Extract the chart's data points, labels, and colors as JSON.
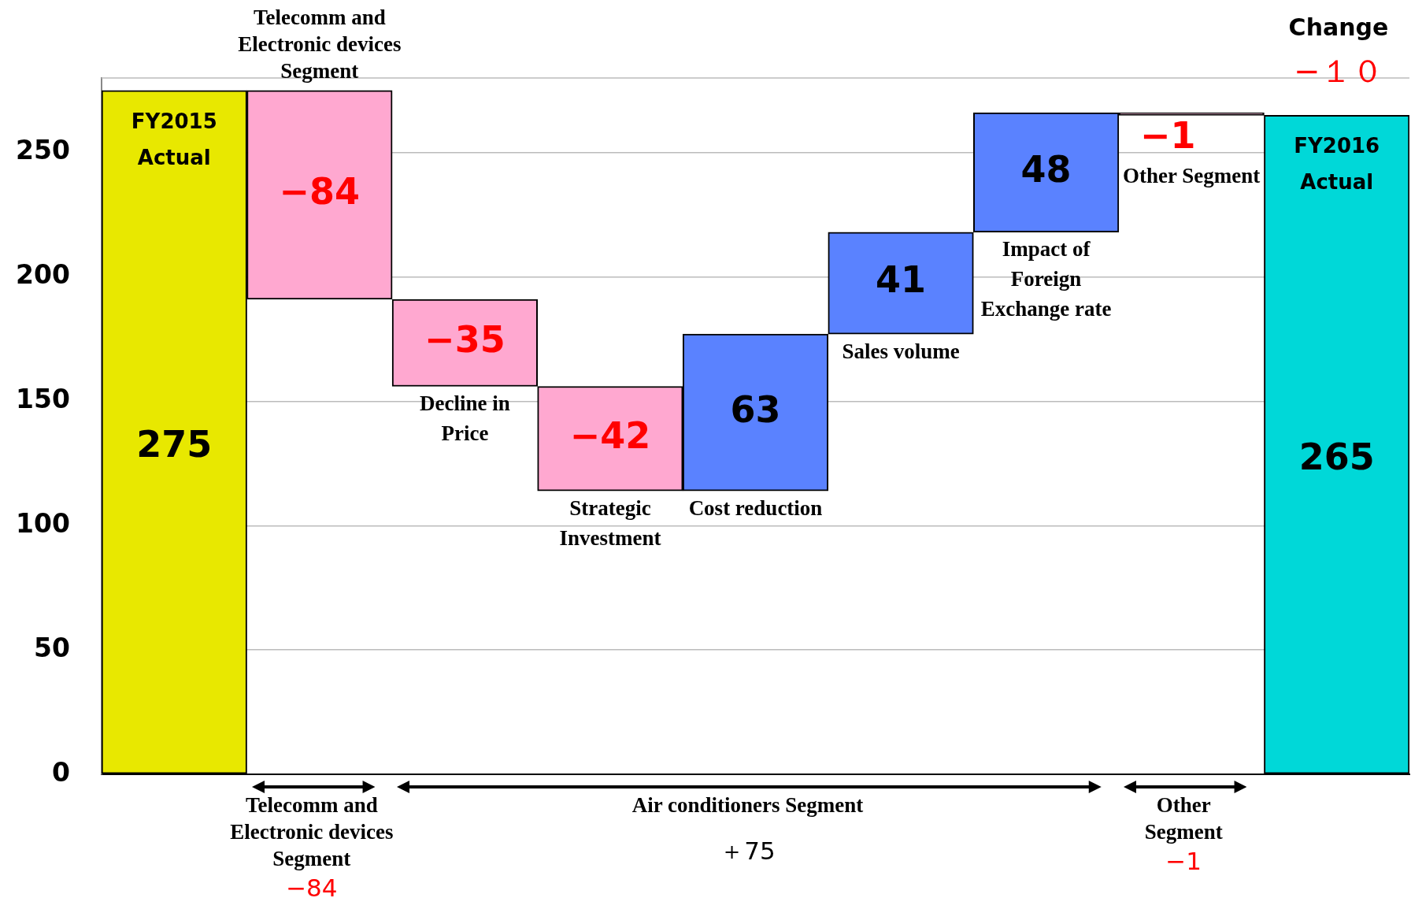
{
  "chart_data": {
    "type": "bar",
    "categories": [
      "FY2015 Actual",
      "Telecomm and Electronic devices Segment",
      "Decline in Price",
      "Strategic Investment",
      "Cost reduction",
      "Sales volume",
      "Impact of Foreign Exchange rate",
      "Other Segment",
      "FY2016 Actual"
    ],
    "values": [
      275,
      -84,
      -35,
      -42,
      63,
      41,
      48,
      -1,
      265
    ],
    "base": [
      0,
      275,
      191,
      156,
      114,
      177,
      218,
      266,
      0
    ],
    "colors": [
      "#e8e800",
      "#ffa8d0",
      "#ffa8d0",
      "#ffa8d0",
      "#5a82ff",
      "#5a82ff",
      "#5a82ff",
      "#ffa8d0",
      "#00d8d8"
    ],
    "value_labels": [
      "275",
      "−84",
      "−35",
      "−42",
      "63",
      "41",
      "48",
      "−1",
      "265"
    ],
    "ylim": [
      0,
      280
    ],
    "yticks": [
      0,
      50,
      100,
      150,
      200,
      250
    ],
    "grid": "y",
    "legend": false,
    "tick_labels": "y",
    "annotations": [
      "Change",
      "−１０",
      "Telecomm and Electronic devices Segment",
      "−84",
      "Air conditioners Segment",
      "＋75",
      "Other Segment",
      "−1"
    ]
  }
}
